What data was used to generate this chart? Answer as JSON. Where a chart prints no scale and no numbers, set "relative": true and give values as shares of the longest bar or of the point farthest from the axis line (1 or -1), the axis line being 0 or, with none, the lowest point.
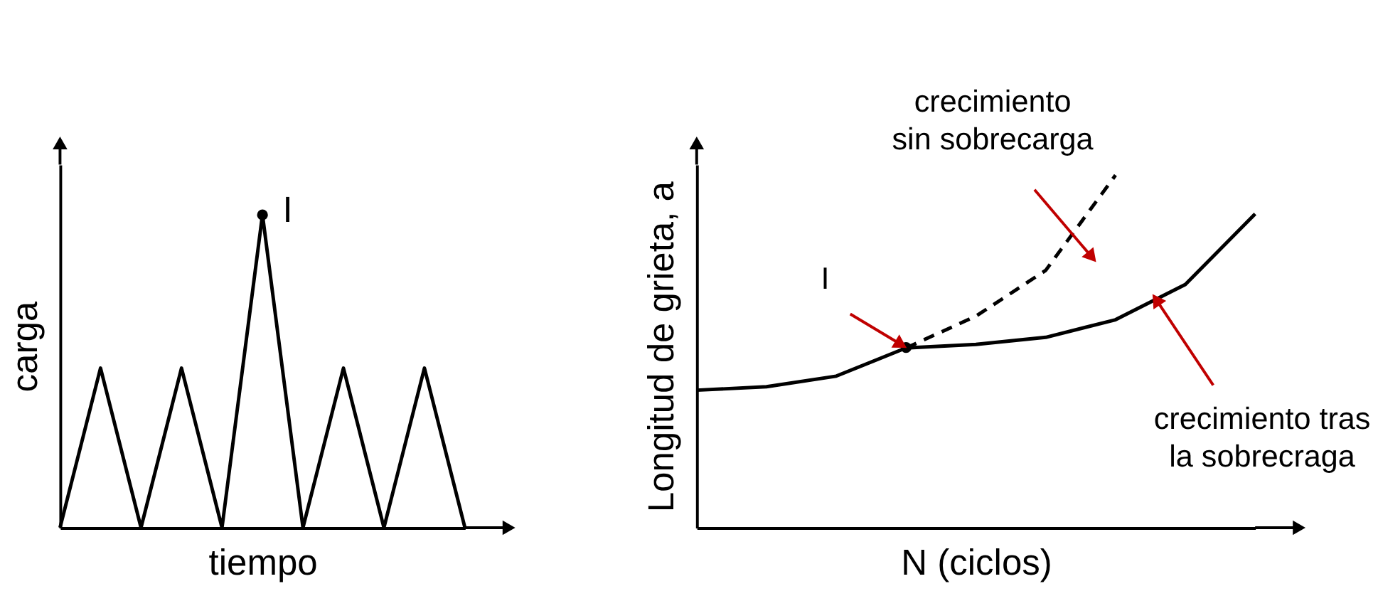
{
  "chart_data": [
    {
      "type": "line",
      "xlabel": "tiempo",
      "ylabel": "carga",
      "relative": true,
      "tick_labels": false,
      "grid": false,
      "categories": [
        null,
        null,
        null,
        null,
        null,
        null,
        null,
        null,
        null,
        null,
        null
      ],
      "series": [
        {
          "color": "#000000",
          "values": [
            0,
            0.51,
            0,
            0.51,
            0,
            1,
            0,
            0.51,
            0,
            0.51,
            0
          ]
        }
      ],
      "annotations": [
        "I"
      ]
    },
    {
      "type": "line",
      "xlabel": "N (ciclos)",
      "ylabel": "Longitud de grieta, a",
      "relative": true,
      "tick_labels": false,
      "grid": false,
      "categories": [
        null,
        null,
        null,
        null,
        null,
        null,
        null,
        null,
        null
      ],
      "series": [
        {
          "color": "#000000",
          "values": [
            0.39,
            0.4,
            0.43,
            0.51,
            0.52,
            0.54,
            0.59,
            0.69,
            0.89
          ]
        },
        {
          "color": "#000000",
          "line_style": "dashed",
          "values": [
            null,
            null,
            null,
            0.51,
            0.6,
            0.73,
            1.0,
            null,
            null
          ]
        }
      ],
      "annotations": [
        "I",
        "crecimiento\nsin sobrecarga",
        "crecimiento tras\nla sobrecraga"
      ]
    }
  ]
}
